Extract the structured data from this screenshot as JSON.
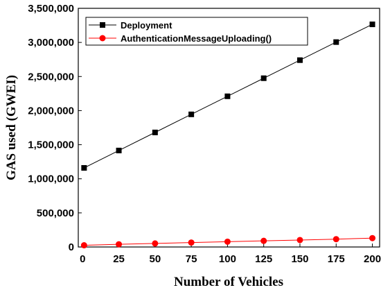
{
  "chart_data": {
    "type": "line",
    "title": "",
    "xlabel": "Number of Vehicles",
    "ylabel": "GAS used (GWEI)",
    "x": [
      1,
      25,
      50,
      75,
      100,
      125,
      150,
      175,
      200
    ],
    "xlim": [
      -3,
      205
    ],
    "ylim": [
      0,
      3500000
    ],
    "x_ticks": [
      0,
      25,
      50,
      75,
      100,
      125,
      150,
      175,
      200
    ],
    "x_tick_labels": [
      "0",
      "25",
      "50",
      "75",
      "100",
      "125",
      "150",
      "175",
      "200"
    ],
    "y_ticks": [
      0,
      500000,
      1000000,
      1500000,
      2000000,
      2500000,
      3000000,
      3500000
    ],
    "y_tick_labels": [
      "0",
      "500,000",
      "1,000,000",
      "1,500,000",
      "2,000,000",
      "2,500,000",
      "3,000,000",
      "3,500,000"
    ],
    "grid": false,
    "legend_position": "top-left",
    "series": [
      {
        "name": "Deployment",
        "color": "#000000",
        "marker": "square",
        "values": [
          1160000,
          1415000,
          1680000,
          1945000,
          2210000,
          2475000,
          2740000,
          3005000,
          3265000
        ]
      },
      {
        "name": "AuthenticationMessageUploading()",
        "color": "#ff0000",
        "marker": "circle",
        "values": [
          25000,
          40000,
          52000,
          65000,
          78000,
          90000,
          102000,
          115000,
          130000
        ]
      }
    ]
  }
}
